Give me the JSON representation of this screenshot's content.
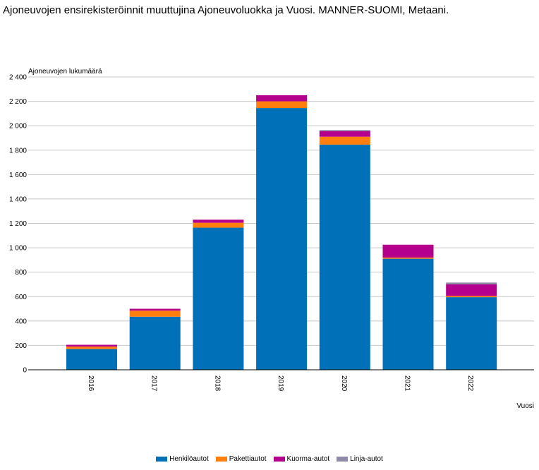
{
  "chart_data": {
    "type": "bar",
    "stacked": true,
    "title": "Ajoneuvojen ensirekisteröinnit muuttujina Ajoneuvoluokka ja Vuosi. MANNER-SUOMI, Metaani.",
    "ylabel": "Ajoneuvojen lukumäärä",
    "xlabel": "Vuosi",
    "ylim": [
      0,
      2400
    ],
    "yticks": [
      0,
      200,
      400,
      600,
      800,
      1000,
      1200,
      1400,
      1600,
      1800,
      2000,
      2200,
      2400
    ],
    "ytick_labels": [
      "0",
      "200",
      "400",
      "600",
      "800",
      "1 000",
      "1 200",
      "1 400",
      "1 600",
      "1 800",
      "2 000",
      "2 200",
      "2 400"
    ],
    "grid": true,
    "legend_position": "bottom",
    "categories": [
      "2016",
      "2017",
      "2018",
      "2019",
      "2020",
      "2021",
      "2022"
    ],
    "series": [
      {
        "name": "Henkilöautot",
        "color": "#0070b8",
        "values": [
          170,
          435,
          1165,
          2145,
          1845,
          910,
          595
        ]
      },
      {
        "name": "Pakettiautot",
        "color": "#ff7f0e",
        "values": [
          20,
          50,
          40,
          55,
          65,
          10,
          10
        ]
      },
      {
        "name": "Kuorma-autot",
        "color": "#b4008c",
        "values": [
          15,
          15,
          25,
          50,
          45,
          105,
          95
        ]
      },
      {
        "name": "Linja-autot",
        "color": "#8e8aa8",
        "values": [
          0,
          0,
          0,
          0,
          10,
          0,
          15
        ]
      }
    ]
  }
}
